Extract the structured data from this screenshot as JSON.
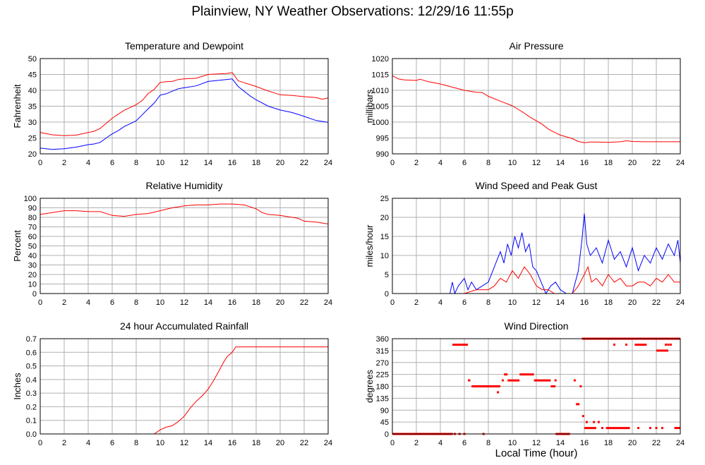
{
  "title": "Plainview, NY Weather Observations: 12/29/16 11:55p",
  "xaxis_label": "Local Time (hour)",
  "colors": {
    "primary": "#ff0000",
    "secondary": "#0000ff",
    "grid": "#b0b0b0",
    "axis": "#000000"
  },
  "chart_data": [
    {
      "id": "temperature",
      "type": "line",
      "title": "Temperature and Dewpoint",
      "ylabel": "Fahrenheit",
      "xlim": [
        0,
        24
      ],
      "ylim": [
        20,
        50
      ],
      "xticks": [
        0,
        2,
        4,
        6,
        8,
        10,
        12,
        14,
        16,
        18,
        20,
        22,
        24
      ],
      "yticks": [
        20,
        25,
        30,
        35,
        40,
        45,
        50
      ],
      "series": [
        {
          "color": "#ff0000",
          "x": [
            0,
            1,
            2,
            3,
            4,
            4.5,
            5,
            5.5,
            6,
            6.5,
            7,
            7.5,
            8,
            8.5,
            9,
            9.5,
            10,
            10.5,
            11,
            11.5,
            12,
            13,
            14,
            15,
            15.5,
            16,
            16.5,
            17,
            17.5,
            18,
            19,
            20,
            21,
            22,
            23,
            23.5,
            24
          ],
          "y": [
            26.7,
            26.0,
            25.7,
            25.9,
            26.7,
            27.1,
            28.0,
            29.6,
            31.2,
            32.5,
            33.7,
            34.6,
            35.5,
            36.8,
            39.0,
            40.3,
            42.5,
            42.7,
            42.8,
            43.4,
            43.6,
            43.8,
            45.0,
            45.2,
            45.3,
            45.6,
            43.0,
            42.4,
            41.8,
            41.2,
            39.8,
            38.6,
            38.4,
            38.0,
            37.7,
            37.2,
            37.6
          ]
        },
        {
          "color": "#0000ff",
          "x": [
            0,
            1,
            2,
            3,
            4,
            4.5,
            5,
            5.5,
            6,
            6.5,
            7,
            7.5,
            8,
            8.5,
            9,
            9.5,
            10,
            10.5,
            11,
            11.5,
            12,
            13,
            14,
            15,
            15.5,
            16,
            16.5,
            17,
            17.5,
            18,
            19,
            20,
            21,
            22,
            23,
            24
          ],
          "y": [
            21.8,
            21.4,
            21.6,
            22.1,
            22.9,
            23.1,
            23.6,
            25.0,
            26.3,
            27.3,
            28.6,
            29.5,
            30.4,
            32.3,
            34.2,
            36.0,
            38.5,
            38.9,
            39.7,
            40.5,
            40.8,
            41.4,
            42.8,
            43.2,
            43.4,
            43.6,
            41.2,
            39.7,
            38.2,
            37.0,
            35.0,
            33.8,
            33.0,
            31.8,
            30.5,
            29.9
          ]
        }
      ]
    },
    {
      "id": "pressure",
      "type": "line",
      "title": "Air Pressure",
      "ylabel": "millibars",
      "xlim": [
        0,
        24
      ],
      "ylim": [
        990,
        1020
      ],
      "xticks": [
        0,
        2,
        4,
        6,
        8,
        10,
        12,
        14,
        16,
        18,
        20,
        22,
        24
      ],
      "yticks": [
        990,
        995,
        1000,
        1005,
        1010,
        1015,
        1020
      ],
      "series": [
        {
          "color": "#ff0000",
          "x": [
            0,
            0.5,
            1,
            2,
            2.3,
            3,
            4,
            5,
            6,
            7,
            7.5,
            8,
            9,
            10,
            10.5,
            11,
            11.5,
            12,
            12.5,
            13,
            13.5,
            14,
            15,
            15.5,
            16,
            16.5,
            17,
            18,
            19,
            19.5,
            20,
            21,
            22,
            23,
            24
          ],
          "y": [
            1014.6,
            1013.6,
            1013.3,
            1013.1,
            1013.5,
            1012.7,
            1012.0,
            1011.0,
            1010.0,
            1009.4,
            1009.3,
            1008.1,
            1006.6,
            1005.1,
            1004.0,
            1002.8,
            1001.5,
            1000.4,
            999.3,
            997.8,
            996.8,
            995.9,
            994.8,
            993.9,
            993.5,
            993.7,
            993.7,
            993.6,
            993.8,
            994.1,
            993.9,
            993.8,
            993.8,
            993.8,
            993.8
          ]
        }
      ]
    },
    {
      "id": "humidity",
      "type": "line",
      "title": "Relative Humidity",
      "ylabel": "Percent",
      "xlim": [
        0,
        24
      ],
      "ylim": [
        0,
        100
      ],
      "xticks": [
        0,
        2,
        4,
        6,
        8,
        10,
        12,
        14,
        16,
        18,
        20,
        22,
        24
      ],
      "yticks": [
        0,
        10,
        20,
        30,
        40,
        50,
        60,
        70,
        80,
        90,
        100
      ],
      "series": [
        {
          "color": "#ff0000",
          "x": [
            0,
            1,
            2,
            3,
            4,
            5,
            6,
            7,
            8,
            9,
            10,
            11,
            12,
            13,
            14,
            15,
            16,
            17,
            18,
            18.5,
            19,
            20,
            21,
            21.5,
            22,
            23,
            24
          ],
          "y": [
            83,
            85,
            87,
            87,
            86,
            86,
            82,
            81,
            83,
            84,
            87,
            90,
            92,
            93,
            93,
            94,
            94,
            93,
            89,
            85,
            83,
            82,
            80,
            79,
            76,
            75,
            73
          ]
        }
      ]
    },
    {
      "id": "wind_speed",
      "type": "line",
      "title": "Wind Speed and Peak Gust",
      "ylabel": "miles/hour",
      "xlim": [
        0,
        24
      ],
      "ylim": [
        0,
        25
      ],
      "xticks": [
        0,
        2,
        4,
        6,
        8,
        10,
        12,
        14,
        16,
        18,
        20,
        22,
        24
      ],
      "yticks": [
        0,
        5,
        10,
        15,
        20,
        25
      ],
      "series": [
        {
          "color": "#0000ff",
          "x": [
            0,
            4.8,
            5.0,
            5.2,
            5.5,
            6.0,
            6.3,
            6.6,
            7.0,
            7.5,
            8.0,
            8.5,
            9.0,
            9.3,
            9.6,
            9.9,
            10.2,
            10.5,
            10.8,
            11.1,
            11.4,
            11.7,
            12.0,
            12.4,
            12.8,
            13.2,
            13.6,
            14.0,
            14.5,
            15.0,
            15.5,
            15.8,
            16.0,
            16.2,
            16.5,
            17.0,
            17.5,
            18.0,
            18.5,
            19.0,
            19.5,
            20.0,
            20.5,
            21.0,
            21.5,
            22.0,
            22.5,
            23.0,
            23.5,
            23.8,
            24.0
          ],
          "y": [
            0,
            0,
            3,
            0,
            2,
            4,
            1,
            3,
            1,
            2,
            3,
            7,
            11,
            8,
            13,
            10,
            15,
            12,
            16,
            11,
            13,
            7,
            6,
            3,
            0,
            2,
            3,
            1,
            0,
            0,
            6,
            14,
            21,
            13,
            10,
            12,
            8,
            14,
            9,
            11,
            7,
            12,
            6,
            10,
            8,
            12,
            9,
            13,
            10,
            14,
            8
          ]
        },
        {
          "color": "#ff0000",
          "x": [
            0,
            4.8,
            6.0,
            7.0,
            8.0,
            8.5,
            9.0,
            9.5,
            10.0,
            10.5,
            11.0,
            11.5,
            12.0,
            12.5,
            13.0,
            13.5,
            14.0,
            15.0,
            15.5,
            16.0,
            16.3,
            16.6,
            17.0,
            17.5,
            18.0,
            18.5,
            19.0,
            19.5,
            20.0,
            20.5,
            21.0,
            21.5,
            22.0,
            22.5,
            23.0,
            23.5,
            24.0
          ],
          "y": [
            0,
            0,
            0,
            1,
            1,
            2,
            4,
            3,
            6,
            4,
            7,
            5,
            2,
            1,
            1,
            0,
            0,
            0,
            2,
            5,
            7,
            3,
            4,
            2,
            5,
            3,
            4,
            2,
            2,
            3,
            3,
            2,
            4,
            3,
            5,
            3,
            3
          ]
        }
      ]
    },
    {
      "id": "rainfall",
      "type": "line",
      "title": "24 hour Accumulated Rainfall",
      "ylabel": "Inches",
      "xlim": [
        0,
        24
      ],
      "ylim": [
        0,
        0.7
      ],
      "xticks": [
        0,
        2,
        4,
        6,
        8,
        10,
        12,
        14,
        16,
        18,
        20,
        22,
        24
      ],
      "yticks": [
        0.0,
        0.1,
        0.2,
        0.3,
        0.4,
        0.5,
        0.6,
        0.7
      ],
      "series": [
        {
          "color": "#ff0000",
          "x": [
            0,
            9.5,
            10,
            10.5,
            11,
            11.5,
            12,
            12.5,
            13,
            13.5,
            14,
            14.5,
            15,
            15.3,
            15.6,
            16,
            16.3,
            17,
            18,
            20,
            22,
            24
          ],
          "y": [
            0,
            0,
            0.03,
            0.05,
            0.06,
            0.09,
            0.13,
            0.19,
            0.24,
            0.28,
            0.33,
            0.4,
            0.48,
            0.53,
            0.57,
            0.6,
            0.64,
            0.64,
            0.64,
            0.64,
            0.64,
            0.64
          ]
        }
      ]
    },
    {
      "id": "wind_direction",
      "type": "scatter",
      "title": "Wind Direction",
      "ylabel": "degrees",
      "xlim": [
        0,
        24
      ],
      "ylim": [
        0,
        360
      ],
      "xticks": [
        0,
        2,
        4,
        6,
        8,
        10,
        12,
        14,
        16,
        18,
        20,
        22,
        24
      ],
      "yticks": [
        0,
        45,
        90,
        135,
        180,
        225,
        270,
        315,
        360
      ],
      "segments": [
        {
          "x0": 0,
          "x1": 4.9,
          "y": 0
        },
        {
          "x0": 5.0,
          "x1": 6.3,
          "y": 337.5
        },
        {
          "x0": 6.3,
          "x1": 6.5,
          "y": 202.5
        },
        {
          "x0": 6.6,
          "x1": 9.0,
          "y": 180
        },
        {
          "x0": 9.3,
          "x1": 9.6,
          "y": 225
        },
        {
          "x0": 9.6,
          "x1": 10.6,
          "y": 202.5
        },
        {
          "x0": 10.6,
          "x1": 11.8,
          "y": 225
        },
        {
          "x0": 11.8,
          "x1": 13.2,
          "y": 202.5
        },
        {
          "x0": 13.2,
          "x1": 13.6,
          "y": 180
        },
        {
          "x0": 13.6,
          "x1": 14.8,
          "y": 0
        },
        {
          "x0": 15.3,
          "x1": 15.6,
          "y": 112.5
        },
        {
          "x0": 15.8,
          "x1": 24.0,
          "y": 360
        },
        {
          "x0": 16.0,
          "x1": 17.0,
          "y": 22.5
        },
        {
          "x0": 17.8,
          "x1": 19.8,
          "y": 22.5
        },
        {
          "x0": 20.2,
          "x1": 21.2,
          "y": 337.5
        },
        {
          "x0": 22.0,
          "x1": 23.0,
          "y": 315
        },
        {
          "x0": 23.5,
          "x1": 24.0,
          "y": 22.5
        }
      ],
      "points": [
        {
          "x": 4.95,
          "y": 0
        },
        {
          "x": 5.2,
          "y": 0
        },
        {
          "x": 5.6,
          "y": 0
        },
        {
          "x": 6.0,
          "y": 0
        },
        {
          "x": 7.6,
          "y": 0
        },
        {
          "x": 8.8,
          "y": 157.5
        },
        {
          "x": 9.2,
          "y": 202.5
        },
        {
          "x": 12.0,
          "y": 202.5
        },
        {
          "x": 13.6,
          "y": 202.5
        },
        {
          "x": 14.2,
          "y": 0
        },
        {
          "x": 15.2,
          "y": 202.5
        },
        {
          "x": 15.7,
          "y": 180
        },
        {
          "x": 15.9,
          "y": 67.5
        },
        {
          "x": 16.2,
          "y": 45
        },
        {
          "x": 16.8,
          "y": 45
        },
        {
          "x": 17.2,
          "y": 45
        },
        {
          "x": 17.5,
          "y": 22.5
        },
        {
          "x": 20.5,
          "y": 22.5
        },
        {
          "x": 21.5,
          "y": 22.5
        },
        {
          "x": 22.0,
          "y": 22.5
        },
        {
          "x": 22.5,
          "y": 22.5
        },
        {
          "x": 18.5,
          "y": 337.5
        },
        {
          "x": 19.5,
          "y": 337.5
        },
        {
          "x": 22.8,
          "y": 337.5
        },
        {
          "x": 23.0,
          "y": 337.5
        },
        {
          "x": 23.2,
          "y": 337.5
        }
      ]
    }
  ]
}
